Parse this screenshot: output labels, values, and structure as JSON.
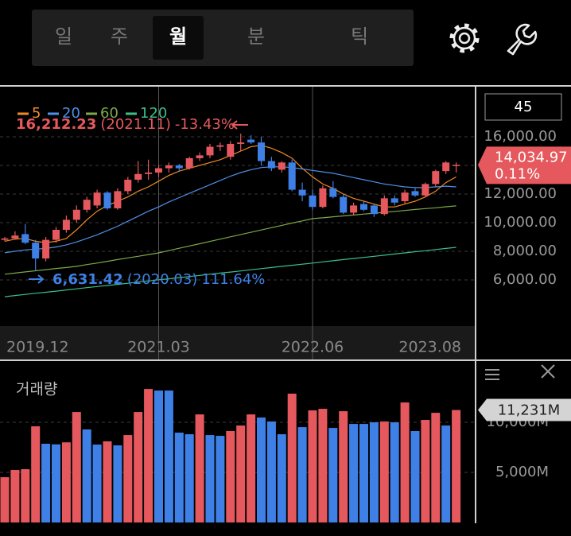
{
  "tabs": [
    "일",
    "주",
    "월",
    "분",
    "틱"
  ],
  "selected_tab": 2,
  "period": "45",
  "chart_data": [
    {
      "type": "candlestick",
      "categories": [
        "2019.12",
        null,
        null,
        null,
        null,
        null,
        null,
        null,
        null,
        null,
        null,
        null,
        null,
        null,
        null,
        "2021.03",
        null,
        null,
        null,
        null,
        null,
        null,
        null,
        null,
        null,
        null,
        null,
        null,
        null,
        null,
        "2022.06",
        null,
        null,
        null,
        null,
        null,
        null,
        null,
        null,
        null,
        null,
        null,
        null,
        null,
        "2023.08"
      ],
      "open": [
        8800,
        8900,
        9200,
        8600,
        7500,
        8800,
        9500,
        10200,
        10900,
        11200,
        12100,
        11000,
        12200,
        13000,
        13400,
        13500,
        13800,
        14000,
        13800,
        14500,
        14700,
        15300,
        14600,
        15500,
        15800,
        15600,
        14300,
        13700,
        14200,
        12300,
        11900,
        11100,
        12400,
        11800,
        10700,
        11300,
        11200,
        10600,
        11700,
        11500,
        12200,
        11900,
        12700,
        13600,
        14020
      ],
      "high": [
        9000,
        9400,
        9900,
        8800,
        9000,
        9700,
        10500,
        11200,
        11800,
        12300,
        12200,
        12400,
        13200,
        14300,
        14400,
        14000,
        14200,
        14100,
        14600,
        14900,
        15500,
        15600,
        15700,
        16212.23,
        16100,
        16000,
        14600,
        14300,
        14400,
        12800,
        12300,
        12600,
        12900,
        12000,
        11400,
        11500,
        11300,
        11900,
        11900,
        12300,
        12400,
        12800,
        13700,
        14300,
        14200
      ],
      "low": [
        8700,
        8800,
        8500,
        6631.42,
        7300,
        8600,
        9300,
        10000,
        10700,
        11000,
        10900,
        10900,
        12000,
        12800,
        13000,
        13200,
        13500,
        13600,
        13700,
        14300,
        14500,
        15000,
        14400,
        15000,
        15500,
        14000,
        13600,
        13500,
        12200,
        11500,
        10900,
        11000,
        11700,
        10600,
        10500,
        10800,
        10400,
        10500,
        11200,
        11300,
        11800,
        11800,
        12500,
        13400,
        13500
      ],
      "close": [
        8900,
        9100,
        8600,
        7500,
        8800,
        9500,
        10200,
        10900,
        11600,
        12100,
        11000,
        12200,
        13000,
        13400,
        13500,
        13800,
        14000,
        13800,
        14500,
        14700,
        15300,
        15400,
        15500,
        15600,
        15600,
        14300,
        13800,
        14200,
        12300,
        11900,
        11100,
        12400,
        11800,
        10700,
        11200,
        10900,
        10600,
        11700,
        11400,
        12100,
        11900,
        12700,
        13600,
        14200,
        14034.97
      ],
      "up_color": "#e5595e",
      "down_color": "#3f80e6",
      "series": [
        {
          "name": "5",
          "color": "#f08a24",
          "values": [
            8700,
            8850,
            8900,
            8700,
            8600,
            8700,
            8900,
            9500,
            10200,
            10800,
            11200,
            11500,
            11800,
            12200,
            12500,
            12900,
            13300,
            13600,
            13800,
            14000,
            14200,
            14400,
            14700,
            15000,
            15300,
            15400,
            15200,
            14900,
            14500,
            13800,
            13200,
            12700,
            12400,
            12000,
            11700,
            11500,
            11300,
            11100,
            11100,
            11300,
            11500,
            11800,
            12200,
            12800,
            13200
          ]
        },
        {
          "name": "20",
          "color": "#4f8fe8",
          "values": [
            7900,
            8000,
            8100,
            8150,
            8200,
            8300,
            8450,
            8650,
            8900,
            9150,
            9450,
            9750,
            10100,
            10450,
            10800,
            11100,
            11450,
            11750,
            12050,
            12350,
            12650,
            12950,
            13250,
            13500,
            13700,
            13850,
            13900,
            13900,
            13850,
            13750,
            13650,
            13550,
            13450,
            13300,
            13150,
            13000,
            12850,
            12700,
            12600,
            12500,
            12450,
            12450,
            12500,
            12550,
            12500
          ]
        },
        {
          "name": "60",
          "color": "#7ca84a",
          "values": [
            6400,
            6480,
            6560,
            6640,
            6720,
            6800,
            6870,
            6950,
            7070,
            7180,
            7300,
            7420,
            7540,
            7650,
            7770,
            7890,
            8050,
            8210,
            8370,
            8530,
            8690,
            8850,
            9010,
            9170,
            9330,
            9490,
            9650,
            9810,
            9970,
            10120,
            10280,
            10340,
            10410,
            10470,
            10530,
            10600,
            10660,
            10720,
            10790,
            10850,
            10920,
            10980,
            11040,
            11110,
            11170
          ]
        },
        {
          "name": "120",
          "color": "#3bbf8a",
          "values": [
            4830,
            4910,
            4990,
            5070,
            5140,
            5220,
            5300,
            5380,
            5460,
            5540,
            5610,
            5690,
            5770,
            5850,
            5930,
            6010,
            6080,
            6160,
            6240,
            6320,
            6400,
            6480,
            6550,
            6630,
            6710,
            6790,
            6870,
            6950,
            7020,
            7100,
            7180,
            7260,
            7340,
            7420,
            7500,
            7570,
            7650,
            7730,
            7810,
            7890,
            7970,
            8040,
            8120,
            8200,
            8280
          ]
        }
      ],
      "ylim": [
        2780,
        19440
      ],
      "yticks": [
        {
          "value": 6000,
          "label": "6,000.00"
        },
        {
          "value": 8000,
          "label": "8,000.00"
        },
        {
          "value": 10000,
          "label": "10,000.00"
        },
        {
          "value": 12000,
          "label": "12,000.00"
        },
        {
          "value": 14000,
          "label": "14,000.00"
        },
        {
          "value": 16000,
          "label": "16,000.00"
        }
      ],
      "grid": true,
      "annotations": [
        {
          "price": "16,212.23",
          "date": "(2021.11)",
          "change": "-13.43%",
          "color": "#e5595e"
        },
        {
          "price": "6,631.42",
          "date": "(2020.03)",
          "change": "111.64%",
          "color": "#3f80e6"
        }
      ],
      "last_price": {
        "label": "14,034.97",
        "change": "0.11%",
        "color": "#e5595e"
      }
    },
    {
      "type": "bar",
      "title": "거래량",
      "values": [
        4520,
        5240,
        5320,
        9600,
        7860,
        7800,
        8000,
        11030,
        9290,
        7780,
        8100,
        7700,
        8730,
        11030,
        13330,
        13170,
        13170,
        8970,
        8810,
        10790,
        8730,
        8650,
        9130,
        9680,
        10790,
        10480,
        10080,
        8810,
        12860,
        9520,
        11190,
        11350,
        9440,
        11110,
        9840,
        9840,
        10000,
        10080,
        10000,
        11980,
        9130,
        10240,
        10950,
        9680,
        11231
      ],
      "colors": [
        "#e5595e",
        "#e5595e",
        "#e5595e",
        "#e5595e",
        "#3f80e6",
        "#3f80e6",
        "#e5595e",
        "#e5595e",
        "#3f80e6",
        "#3f80e6",
        "#e5595e",
        "#3f80e6",
        "#e5595e",
        "#e5595e",
        "#e5595e",
        "#3f80e6",
        "#3f80e6",
        "#3f80e6",
        "#3f80e6",
        "#e5595e",
        "#3f80e6",
        "#3f80e6",
        "#e5595e",
        "#e5595e",
        "#e5595e",
        "#3f80e6",
        "#3f80e6",
        "#3f80e6",
        "#e5595e",
        "#3f80e6",
        "#e5595e",
        "#e5595e",
        "#3f80e6",
        "#e5595e",
        "#3f80e6",
        "#3f80e6",
        "#3f80e6",
        "#e5595e",
        "#3f80e6",
        "#e5595e",
        "#3f80e6",
        "#e5595e",
        "#e5595e",
        "#3f80e6",
        "#e5595e"
      ],
      "ylim": [
        0,
        15800
      ],
      "yticks": [
        {
          "value": 5000,
          "label": "5,000M"
        },
        {
          "value": 10000,
          "label": "10,000M"
        }
      ],
      "grid": true,
      "last_label": "11,231M"
    }
  ]
}
